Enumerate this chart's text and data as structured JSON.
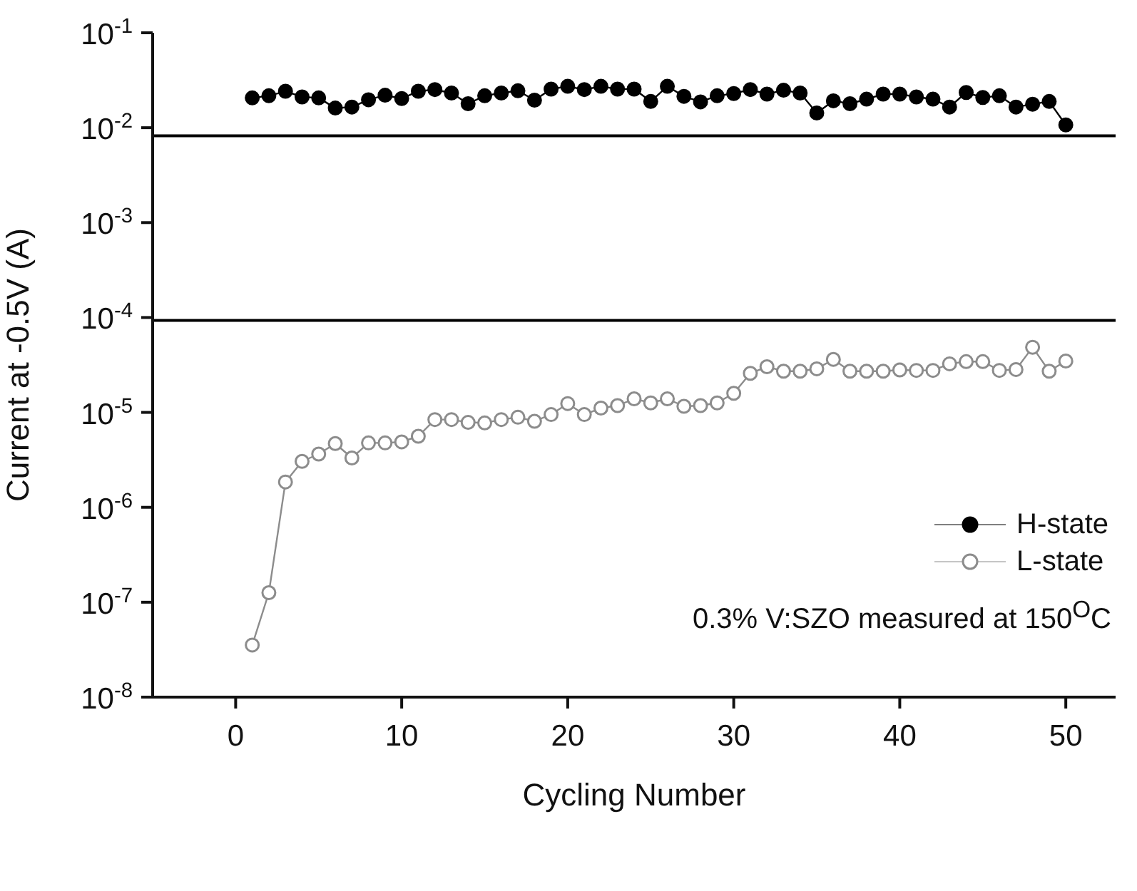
{
  "chart_data": {
    "type": "line",
    "xlabel": "Cycling Number",
    "ylabel": "Current at -0.5V (A)",
    "log": "y",
    "marker": "circle",
    "legend": "bottom right",
    "grid": false,
    "xlim": [
      -5,
      53
    ],
    "xticks": [
      0,
      10,
      20,
      30,
      40,
      50
    ],
    "ylim": [
      1e-08,
      0.1
    ],
    "yticks": [
      {
        "value": 1e-08,
        "label": "10$^{-8}$"
      },
      {
        "value": 1e-07,
        "label": "10$^{-7}$"
      },
      {
        "value": 1e-06,
        "label": "10$^{-6}$"
      },
      {
        "value": 1e-05,
        "label": "10$^{-5}$"
      },
      {
        "value": 0.0001,
        "label": "10$^{-4}$"
      },
      {
        "value": 0.001,
        "label": "10$^{-3}$"
      },
      {
        "value": 0.01,
        "label": "10$^{-2}$"
      },
      {
        "value": 0.1,
        "label": "10$^{-1}$"
      }
    ],
    "x": [
      1,
      2,
      3,
      4,
      5,
      6,
      7,
      8,
      9,
      10,
      11,
      12,
      13,
      14,
      15,
      16,
      17,
      18,
      19,
      20,
      21,
      22,
      23,
      24,
      25,
      26,
      27,
      28,
      29,
      30,
      31,
      32,
      33,
      34,
      35,
      36,
      37,
      38,
      39,
      40,
      41,
      42,
      43,
      44,
      45,
      46,
      47,
      48,
      49,
      50
    ],
    "series": [
      {
        "name": "H-state",
        "color": "#000000",
        "values": [
          0.0206,
          0.0217,
          0.0242,
          0.0211,
          0.0206,
          0.0161,
          0.0165,
          0.0197,
          0.022,
          0.0203,
          0.0242,
          0.0252,
          0.0232,
          0.0179,
          0.0217,
          0.0232,
          0.0245,
          0.0195,
          0.0255,
          0.0273,
          0.0252,
          0.0273,
          0.0255,
          0.0255,
          0.0189,
          0.0273,
          0.0214,
          0.0187,
          0.0217,
          0.0229,
          0.0252,
          0.0226,
          0.0248,
          0.0232,
          0.0143,
          0.0192,
          0.0179,
          0.02,
          0.0226,
          0.0226,
          0.0211,
          0.02,
          0.0165,
          0.0235,
          0.0208,
          0.0217,
          0.0165,
          0.0177,
          0.0189,
          0.0107
        ]
      },
      {
        "name": "L-state",
        "color": "#8c8c8c",
        "values": [
          3.54e-08,
          1.26e-07,
          1.85e-06,
          3.05e-06,
          3.64e-06,
          4.7e-06,
          3.31e-06,
          4.77e-06,
          4.77e-06,
          4.89e-06,
          5.61e-06,
          8.4e-06,
          8.4e-06,
          7.85e-06,
          7.75e-06,
          8.4e-06,
          8.89e-06,
          8.07e-06,
          9.49e-06,
          1.24e-05,
          9.49e-06,
          1.11e-05,
          1.18e-05,
          1.39e-05,
          1.26e-05,
          1.39e-05,
          1.16e-05,
          1.18e-05,
          1.26e-05,
          1.59e-05,
          2.58e-05,
          3.03e-05,
          2.72e-05,
          2.72e-05,
          2.88e-05,
          3.62e-05,
          2.72e-05,
          2.72e-05,
          2.72e-05,
          2.8e-05,
          2.77e-05,
          2.77e-05,
          3.25e-05,
          3.43e-05,
          3.43e-05,
          2.77e-05,
          2.83e-05,
          4.86e-05,
          2.72e-05,
          3.48e-05
        ]
      }
    ],
    "ref_lines": [
      {
        "axis": "y",
        "value": 0.0082,
        "color": "#000000"
      },
      {
        "axis": "y",
        "value": 9.3e-05,
        "color": "#000000"
      }
    ],
    "annotations": [
      "0.3% V:SZO measured at 150$^{O}$C"
    ]
  }
}
